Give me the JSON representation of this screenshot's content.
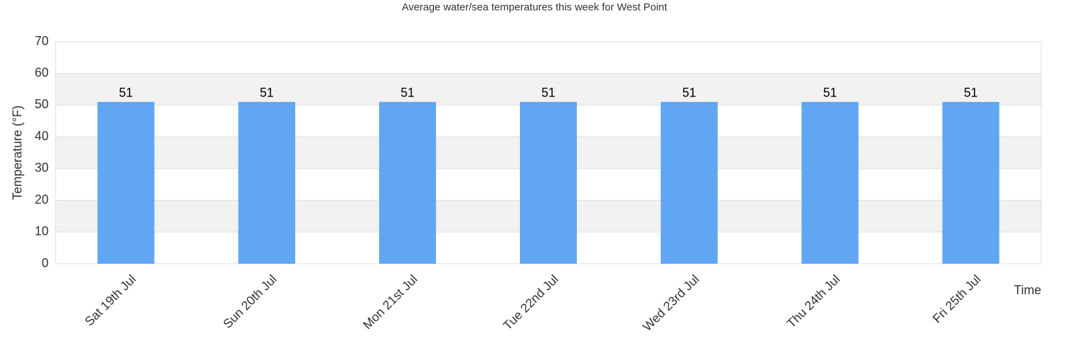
{
  "chart_data": {
    "type": "bar",
    "title": "Average water/sea temperatures this week for West Point",
    "x_label": "Time",
    "y_label": "Temperature (°F)",
    "categories": [
      "Sat 19th Jul",
      "Sun 20th Jul",
      "Mon 21st Jul",
      "Tue 22nd Jul",
      "Wed 23rd Jul",
      "Thu 24th Jul",
      "Fri 25th Jul"
    ],
    "values": [
      51,
      51,
      51,
      51,
      51,
      51,
      51
    ],
    "color": "#61a6f3",
    "ylim": [
      0,
      70
    ],
    "yticks": [
      0,
      10,
      20,
      30,
      40,
      50,
      60,
      70
    ],
    "grid": true
  }
}
